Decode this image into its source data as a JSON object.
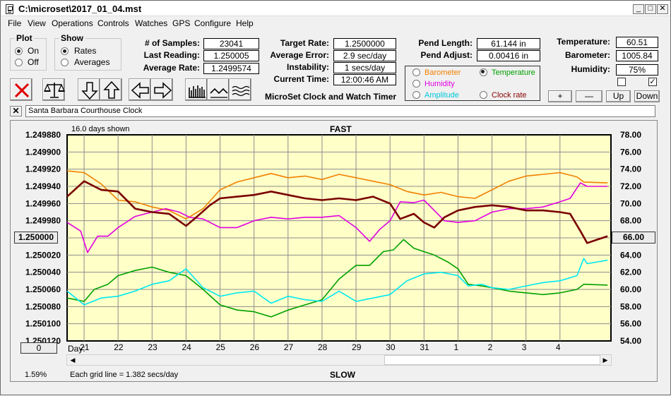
{
  "window": {
    "title": "C:\\microset\\2017_01_04.mst"
  },
  "menu": [
    "File",
    "View",
    "Operations",
    "Controls",
    "Watches",
    "GPS",
    "Configure",
    "Help"
  ],
  "plot_group": {
    "title": "Plot",
    "on": "On",
    "off": "Off",
    "selected": "On"
  },
  "show_group": {
    "title": "Show",
    "rates": "Rates",
    "averages": "Averages",
    "selected": "Rates"
  },
  "stats": {
    "samples_label": "# of Samples:",
    "samples": "23041",
    "last_label": "Last Reading:",
    "last": "1.250005",
    "avg_label": "Average Rate:",
    "avg": "1.2499574"
  },
  "target": {
    "target_label": "Target Rate:",
    "target": "1.2500000",
    "error_label": "Average Error:",
    "error": "2.9 sec/day",
    "instab_label": "Instability:",
    "instab": "1 secs/day",
    "time_label": "Current Time:",
    "time": "12:00:46 AM"
  },
  "app_caption": "MicroSet Clock and Watch Timer",
  "pendulum": {
    "length_label": "Pend Length:",
    "length": "61.144 in",
    "adjust_label": "Pend Adjust:",
    "adjust": "0.00416 in"
  },
  "env": {
    "temp_label": "Temperature:",
    "temp": "60.51",
    "baro_label": "Barometer:",
    "baro": "1005.84",
    "hum_label": "Humidity:",
    "hum": "75%"
  },
  "adjust_buttons": {
    "plus": "+",
    "minus": "—",
    "up": "Up",
    "down": "Down"
  },
  "legend": {
    "barometer": "Barometer",
    "temperature": "Temperature",
    "humidity": "Humidity",
    "amplitude": "Amplitude",
    "clock_rate": "Clock rate",
    "selected": "Temperature"
  },
  "colors": {
    "rate": "#7a0000",
    "barometer": "#f08000",
    "temperature": "#00a000",
    "humidity": "#e000e0",
    "amplitude": "#00e8f0",
    "plot_bg": "#ffffc8"
  },
  "clock_name": "Santa Barbara Courthouse Clock",
  "chart_labels": {
    "days_shown": "16.0 days shown",
    "fast": "FAST",
    "slow": "SLOW",
    "grid_note": "Each grid line = 1.382 secs/day",
    "percent": "1.59%",
    "day_prefix": "Day:",
    "left_center": "1.250000",
    "right_center": "66.00",
    "zero_btn": "0"
  },
  "chart_data": {
    "type": "line",
    "x_label": "Day",
    "x_range": [
      20.5,
      36.5
    ],
    "days": [
      "21",
      "22",
      "23",
      "24",
      "25",
      "26",
      "27",
      "28",
      "29",
      "30",
      "31",
      "1",
      "2",
      "3",
      "4"
    ],
    "left_axis": {
      "ticks": [
        "1.249880",
        "1.249900",
        "1.249920",
        "1.249940",
        "1.249960",
        "1.249980",
        "1.250000",
        "1.250020",
        "1.250040",
        "1.250060",
        "1.250080",
        "1.250100",
        "1.250120"
      ],
      "range": [
        1.24988,
        1.25012
      ]
    },
    "right_axis": {
      "ticks": [
        "78.00",
        "76.00",
        "74.00",
        "72.00",
        "70.00",
        "68.00",
        "66.00",
        "64.00",
        "62.00",
        "60.00",
        "58.00",
        "56.00",
        "54.00"
      ],
      "range": [
        54,
        78
      ]
    },
    "series": [
      {
        "key": "barometer",
        "axis": "right",
        "points": [
          [
            20.5,
            73.8
          ],
          [
            21,
            73.6
          ],
          [
            21.5,
            72.3
          ],
          [
            22,
            70.4
          ],
          [
            22.5,
            70.2
          ],
          [
            23,
            69.6
          ],
          [
            23.5,
            69.2
          ],
          [
            24,
            68.2
          ],
          [
            24.5,
            69.4
          ],
          [
            25,
            71.6
          ],
          [
            25.5,
            72.5
          ],
          [
            26,
            73.0
          ],
          [
            26.5,
            73.5
          ],
          [
            27,
            73.0
          ],
          [
            27.5,
            73.2
          ],
          [
            28,
            72.8
          ],
          [
            28.5,
            73.4
          ],
          [
            29,
            73.0
          ],
          [
            29.5,
            72.6
          ],
          [
            30,
            72.2
          ],
          [
            30.5,
            71.4
          ],
          [
            31,
            71.0
          ],
          [
            31.5,
            71.3
          ],
          [
            32,
            70.8
          ],
          [
            32.5,
            70.6
          ],
          [
            33,
            71.6
          ],
          [
            33.5,
            72.6
          ],
          [
            34,
            73.2
          ],
          [
            34.5,
            73.4
          ],
          [
            35,
            73.6
          ],
          [
            35.5,
            73.1
          ],
          [
            35.7,
            72.5
          ],
          [
            36.4,
            72.4
          ]
        ]
      },
      {
        "key": "humidity",
        "axis": "right",
        "points": [
          [
            20.5,
            67.8
          ],
          [
            20.9,
            66.8
          ],
          [
            21.1,
            64.3
          ],
          [
            21.4,
            66.2
          ],
          [
            21.7,
            66.2
          ],
          [
            22,
            67.2
          ],
          [
            22.5,
            68.5
          ],
          [
            23,
            69.0
          ],
          [
            23.4,
            69.4
          ],
          [
            23.8,
            69.0
          ],
          [
            24.1,
            68.4
          ],
          [
            24.5,
            68.2
          ],
          [
            25,
            67.2
          ],
          [
            25.5,
            67.2
          ],
          [
            26,
            68.0
          ],
          [
            26.5,
            68.4
          ],
          [
            27,
            68.2
          ],
          [
            27.5,
            68.4
          ],
          [
            28,
            68.4
          ],
          [
            28.5,
            68.6
          ],
          [
            29,
            67.2
          ],
          [
            29.4,
            65.6
          ],
          [
            29.7,
            67.0
          ],
          [
            30,
            68.0
          ],
          [
            30.3,
            70.2
          ],
          [
            30.7,
            70.1
          ],
          [
            31,
            70.4
          ],
          [
            31.3,
            69.2
          ],
          [
            31.6,
            68.0
          ],
          [
            32,
            67.8
          ],
          [
            32.5,
            68.0
          ],
          [
            33,
            69.0
          ],
          [
            33.5,
            69.4
          ],
          [
            34,
            69.4
          ],
          [
            34.5,
            69.6
          ],
          [
            35,
            70.2
          ],
          [
            35.3,
            70.6
          ],
          [
            35.6,
            72.4
          ],
          [
            35.8,
            72.0
          ],
          [
            36.4,
            72.0
          ]
        ]
      },
      {
        "key": "temperature",
        "axis": "right",
        "points": [
          [
            20.5,
            59.0
          ],
          [
            21,
            58.6
          ],
          [
            21.3,
            60.0
          ],
          [
            21.7,
            60.6
          ],
          [
            22,
            61.6
          ],
          [
            22.5,
            62.2
          ],
          [
            23,
            62.6
          ],
          [
            23.5,
            62.0
          ],
          [
            24,
            61.6
          ],
          [
            24.5,
            60.0
          ],
          [
            25,
            58.2
          ],
          [
            25.5,
            57.6
          ],
          [
            26,
            57.4
          ],
          [
            26.5,
            56.8
          ],
          [
            27,
            57.6
          ],
          [
            27.5,
            58.2
          ],
          [
            28,
            58.8
          ],
          [
            28.5,
            61.2
          ],
          [
            29,
            62.8
          ],
          [
            29.4,
            62.8
          ],
          [
            29.8,
            64.4
          ],
          [
            30.1,
            64.6
          ],
          [
            30.4,
            65.8
          ],
          [
            30.7,
            64.8
          ],
          [
            31,
            64.4
          ],
          [
            31.3,
            64.0
          ],
          [
            31.7,
            63.2
          ],
          [
            32,
            62.4
          ],
          [
            32.3,
            60.6
          ],
          [
            32.7,
            60.4
          ],
          [
            33,
            60.2
          ],
          [
            33.5,
            59.8
          ],
          [
            34,
            59.6
          ],
          [
            34.5,
            59.4
          ],
          [
            35,
            59.6
          ],
          [
            35.5,
            60.0
          ],
          [
            35.7,
            60.6
          ],
          [
            36.4,
            60.5
          ]
        ]
      },
      {
        "key": "amplitude",
        "axis": "right",
        "points": [
          [
            20.5,
            59.8
          ],
          [
            21,
            58.2
          ],
          [
            21.5,
            59.0
          ],
          [
            22,
            59.2
          ],
          [
            22.5,
            59.8
          ],
          [
            23,
            60.6
          ],
          [
            23.5,
            61.0
          ],
          [
            24,
            62.4
          ],
          [
            24.5,
            60.2
          ],
          [
            25,
            59.2
          ],
          [
            25.5,
            59.6
          ],
          [
            26,
            59.8
          ],
          [
            26.5,
            58.4
          ],
          [
            27,
            59.2
          ],
          [
            27.5,
            58.8
          ],
          [
            28,
            58.6
          ],
          [
            28.5,
            59.8
          ],
          [
            29,
            58.6
          ],
          [
            29.5,
            59.0
          ],
          [
            30,
            59.4
          ],
          [
            30.5,
            61.0
          ],
          [
            31,
            61.8
          ],
          [
            31.5,
            62.0
          ],
          [
            32,
            61.6
          ],
          [
            32.3,
            60.4
          ],
          [
            32.7,
            60.6
          ],
          [
            33,
            60.2
          ],
          [
            33.5,
            60.0
          ],
          [
            34,
            60.4
          ],
          [
            34.5,
            60.8
          ],
          [
            35,
            61.0
          ],
          [
            35.5,
            61.6
          ],
          [
            35.7,
            63.6
          ],
          [
            35.8,
            63.0
          ],
          [
            36.4,
            63.4
          ]
        ]
      },
      {
        "key": "rate",
        "axis": "left",
        "points": [
          [
            20.5,
            1.249952
          ],
          [
            21,
            1.249934
          ],
          [
            21.5,
            1.249944
          ],
          [
            22,
            1.249946
          ],
          [
            22.5,
            1.249966
          ],
          [
            23,
            1.24997
          ],
          [
            23.5,
            1.249972
          ],
          [
            24,
            1.249986
          ],
          [
            24.3,
            1.249976
          ],
          [
            24.7,
            1.249962
          ],
          [
            25,
            1.249954
          ],
          [
            25.5,
            1.249952
          ],
          [
            26,
            1.24995
          ],
          [
            26.5,
            1.249946
          ],
          [
            27,
            1.24995
          ],
          [
            27.5,
            1.249954
          ],
          [
            28,
            1.249956
          ],
          [
            28.5,
            1.249954
          ],
          [
            29,
            1.249956
          ],
          [
            29.5,
            1.249952
          ],
          [
            30,
            1.24996
          ],
          [
            30.3,
            1.249978
          ],
          [
            30.7,
            1.249972
          ],
          [
            31,
            1.249982
          ],
          [
            31.3,
            1.249988
          ],
          [
            31.6,
            1.249976
          ],
          [
            32,
            1.249968
          ],
          [
            32.5,
            1.249964
          ],
          [
            33,
            1.249962
          ],
          [
            33.5,
            1.249964
          ],
          [
            34,
            1.249968
          ],
          [
            34.5,
            1.249968
          ],
          [
            35,
            1.24997
          ],
          [
            35.3,
            1.249972
          ],
          [
            35.6,
            1.249992
          ],
          [
            35.8,
            1.250006
          ],
          [
            36.1,
            1.250002
          ],
          [
            36.4,
            1.249998
          ]
        ]
      }
    ]
  }
}
